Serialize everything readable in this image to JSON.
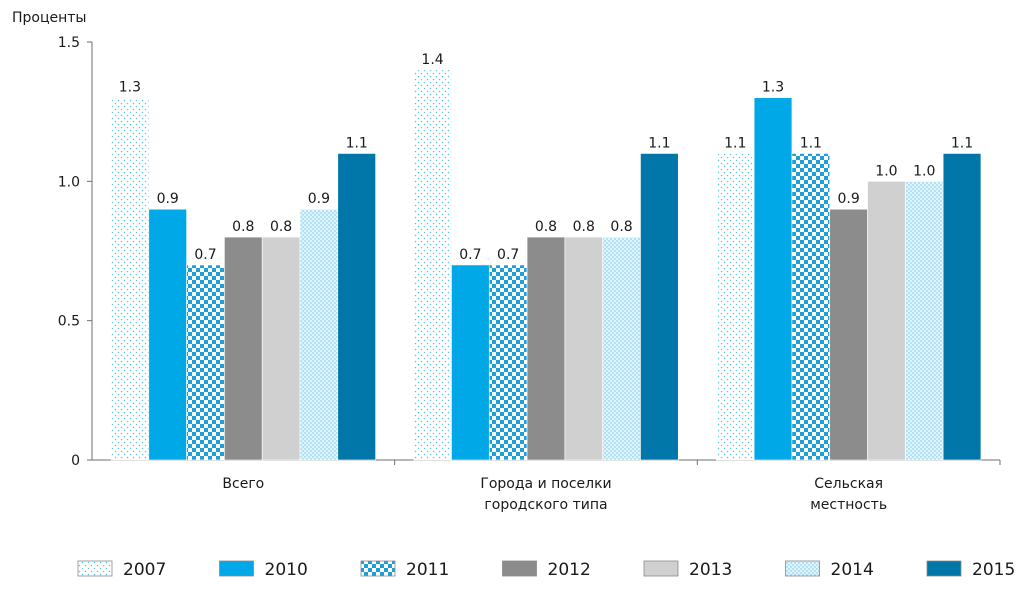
{
  "chart_data": {
    "type": "bar",
    "ylabel": "Проценты",
    "ylim": [
      0,
      1.5
    ],
    "yticks": [
      "0",
      "0.5",
      "1.0",
      "1.5"
    ],
    "categories": [
      [
        "Всего"
      ],
      [
        "Города и поселки",
        "городского типа"
      ],
      [
        "Сельская",
        "местность"
      ]
    ],
    "series": [
      {
        "name": "2007",
        "values": [
          1.3,
          1.4,
          1.1
        ],
        "labels": [
          "1.3",
          "1.4",
          "1.1"
        ],
        "pattern": "dots"
      },
      {
        "name": "2010",
        "values": [
          0.9,
          0.7,
          1.3
        ],
        "labels": [
          "0.9",
          "0.7",
          "1.3"
        ],
        "pattern": "solid-light-blue"
      },
      {
        "name": "2011",
        "values": [
          0.7,
          0.7,
          1.1
        ],
        "labels": [
          "0.7",
          "0.7",
          "1.1"
        ],
        "pattern": "checker"
      },
      {
        "name": "2012",
        "values": [
          0.8,
          0.8,
          0.9
        ],
        "labels": [
          "0.8",
          "0.8",
          "0.9"
        ],
        "pattern": "solid-dark-gray"
      },
      {
        "name": "2013",
        "values": [
          0.8,
          0.8,
          1.0
        ],
        "labels": [
          "0.8",
          "0.8",
          "1.0"
        ],
        "pattern": "solid-light-gray"
      },
      {
        "name": "2014",
        "values": [
          0.9,
          0.8,
          1.0
        ],
        "labels": [
          "0.9",
          "0.8",
          "1.0"
        ],
        "pattern": "light-dots"
      },
      {
        "name": "2015",
        "values": [
          1.1,
          1.1,
          1.1
        ],
        "labels": [
          "1.1",
          "1.1",
          "1.1"
        ],
        "pattern": "solid-dark-blue"
      }
    ],
    "grid": false,
    "legend": "bottom",
    "colors": {
      "light_blue": "#00a8e8",
      "dark_blue": "#0077a8",
      "dark_gray": "#8c8c8c",
      "light_gray": "#d0d0d0",
      "dot_blue": "#5bc2e7",
      "checker_blue": "#1e9fd8"
    }
  }
}
